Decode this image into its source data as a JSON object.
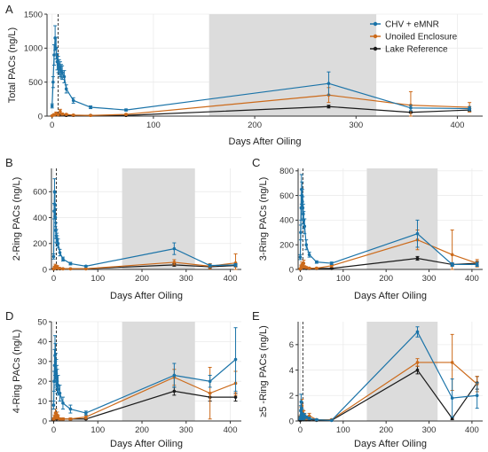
{
  "colors": {
    "chv": "#1a73a8",
    "unoiled": "#cc6a1a",
    "lake": "#1a1a1a",
    "shade": "#dcdcdc",
    "grid": "#ebebeb"
  },
  "legend": {
    "entries": [
      "CHV + eMNR",
      "Unoiled Enclosure",
      "Lake Reference"
    ]
  },
  "chart_data": [
    {
      "panel": "A",
      "type": "line",
      "xlabel": "Days After Oiling",
      "ylabel": "Total PACs (ng/L)",
      "xlim": [
        -5,
        425
      ],
      "ylim": [
        0,
        1500
      ],
      "xticks": [
        0,
        100,
        200,
        300,
        400
      ],
      "yticks": [
        0,
        500,
        1000,
        1500
      ],
      "shade": [
        155,
        320
      ],
      "vline": 6,
      "series": [
        {
          "name": "CHV + eMNR",
          "x": [
            0,
            1,
            2,
            3,
            4,
            5,
            6,
            7,
            8,
            9,
            10,
            12,
            14,
            21,
            38,
            73,
            273,
            354,
            412
          ],
          "y": [
            150,
            500,
            900,
            1150,
            1000,
            800,
            760,
            720,
            690,
            660,
            640,
            580,
            400,
            230,
            130,
            90,
            480,
            120,
            110
          ],
          "err": [
            30,
            80,
            150,
            180,
            160,
            120,
            120,
            110,
            110,
            100,
            100,
            90,
            60,
            40,
            20,
            15,
            170,
            40,
            30
          ]
        },
        {
          "name": "Unoiled Enclosure",
          "x": [
            0,
            2,
            4,
            6,
            8,
            10,
            14,
            21,
            38,
            73,
            273,
            354,
            412
          ],
          "y": [
            5,
            20,
            40,
            20,
            70,
            30,
            25,
            15,
            10,
            25,
            310,
            160,
            130
          ],
          "err": [
            3,
            15,
            20,
            10,
            30,
            15,
            10,
            8,
            5,
            10,
            110,
            200,
            70
          ]
        },
        {
          "name": "Lake Reference",
          "x": [
            0,
            7,
            14,
            21,
            38,
            73,
            273,
            354,
            412
          ],
          "y": [
            5,
            15,
            10,
            10,
            10,
            10,
            140,
            55,
            90
          ],
          "err": [
            2,
            5,
            4,
            4,
            4,
            4,
            20,
            10,
            20
          ]
        }
      ]
    },
    {
      "panel": "B",
      "type": "line",
      "xlabel": "Days After Oiling",
      "ylabel": "2-Ring PACs (ng/L)",
      "xlim": [
        -5,
        425
      ],
      "ylim": [
        0,
        780
      ],
      "xticks": [
        0,
        100,
        200,
        300,
        400
      ],
      "yticks": [
        0,
        200,
        400,
        600
      ],
      "shade": [
        155,
        320
      ],
      "vline": 6,
      "series": [
        {
          "name": "CHV + eMNR",
          "x": [
            0,
            1,
            2,
            3,
            4,
            5,
            6,
            7,
            8,
            10,
            14,
            21,
            38,
            73,
            273,
            354,
            412
          ],
          "y": [
            100,
            450,
            600,
            500,
            400,
            300,
            260,
            240,
            220,
            200,
            130,
            80,
            45,
            25,
            160,
            30,
            35
          ],
          "err": [
            20,
            60,
            100,
            90,
            70,
            60,
            50,
            40,
            40,
            35,
            25,
            15,
            10,
            5,
            45,
            10,
            10
          ]
        },
        {
          "name": "Unoiled Enclosure",
          "x": [
            0,
            2,
            4,
            6,
            8,
            10,
            14,
            21,
            38,
            73,
            273,
            354,
            412
          ],
          "y": [
            5,
            15,
            25,
            10,
            20,
            10,
            8,
            5,
            5,
            5,
            55,
            25,
            50
          ],
          "err": [
            3,
            10,
            15,
            5,
            10,
            5,
            4,
            3,
            3,
            3,
            20,
            20,
            70
          ]
        },
        {
          "name": "Lake Reference",
          "x": [
            0,
            7,
            14,
            21,
            38,
            73,
            273,
            354,
            412
          ],
          "y": [
            3,
            5,
            5,
            5,
            5,
            5,
            35,
            20,
            30
          ],
          "err": [
            1,
            2,
            2,
            2,
            2,
            2,
            10,
            6,
            10
          ]
        }
      ]
    },
    {
      "panel": "C",
      "type": "line",
      "xlabel": "Days After Oiling",
      "ylabel": "3-Ring PACs (ng/L)",
      "xlim": [
        -5,
        425
      ],
      "ylim": [
        0,
        820
      ],
      "xticks": [
        0,
        100,
        200,
        300,
        400
      ],
      "yticks": [
        0,
        200,
        400,
        600,
        800
      ],
      "shade": [
        155,
        320
      ],
      "vline": 6,
      "series": [
        {
          "name": "CHV + eMNR",
          "x": [
            0,
            1,
            2,
            3,
            4,
            5,
            6,
            7,
            8,
            10,
            14,
            21,
            38,
            73,
            273,
            354,
            412
          ],
          "y": [
            100,
            300,
            500,
            650,
            600,
            550,
            500,
            450,
            400,
            350,
            200,
            120,
            60,
            50,
            290,
            40,
            40
          ],
          "err": [
            20,
            60,
            100,
            120,
            110,
            100,
            90,
            80,
            70,
            60,
            40,
            20,
            10,
            10,
            110,
            15,
            15
          ]
        },
        {
          "name": "Unoiled Enclosure",
          "x": [
            0,
            2,
            4,
            6,
            8,
            10,
            14,
            21,
            38,
            73,
            273,
            354,
            412
          ],
          "y": [
            5,
            20,
            40,
            20,
            50,
            20,
            15,
            10,
            10,
            30,
            240,
            120,
            50
          ],
          "err": [
            3,
            15,
            20,
            10,
            25,
            10,
            8,
            5,
            5,
            10,
            80,
            200,
            30
          ]
        },
        {
          "name": "Lake Reference",
          "x": [
            0,
            7,
            14,
            21,
            38,
            73,
            273,
            354,
            412
          ],
          "y": [
            3,
            10,
            8,
            8,
            8,
            8,
            90,
            40,
            50
          ],
          "err": [
            1,
            3,
            3,
            3,
            3,
            3,
            15,
            8,
            15
          ]
        }
      ]
    },
    {
      "panel": "D",
      "type": "line",
      "xlabel": "Days After Oiling",
      "ylabel": "4-Ring PACs (ng/L)",
      "xlim": [
        -5,
        425
      ],
      "ylim": [
        0,
        50
      ],
      "xticks": [
        0,
        100,
        200,
        300,
        400
      ],
      "yticks": [
        0,
        10,
        20,
        30,
        40,
        50
      ],
      "shade": [
        155,
        320
      ],
      "vline": 6,
      "series": [
        {
          "name": "CHV + eMNR",
          "x": [
            0,
            1,
            2,
            3,
            4,
            5,
            6,
            7,
            8,
            10,
            14,
            21,
            38,
            73,
            273,
            354,
            412
          ],
          "y": [
            8,
            20,
            28,
            33,
            30,
            26,
            24,
            22,
            20,
            18,
            14,
            9,
            6,
            4,
            23,
            20,
            31
          ],
          "err": [
            2,
            5,
            8,
            10,
            9,
            8,
            7,
            6,
            6,
            5,
            4,
            3,
            2,
            1,
            6,
            3,
            16
          ]
        },
        {
          "name": "Unoiled Enclosure",
          "x": [
            0,
            2,
            4,
            6,
            8,
            10,
            14,
            21,
            38,
            73,
            273,
            354,
            412
          ],
          "y": [
            1,
            2,
            4,
            2,
            3,
            2,
            1,
            1,
            1,
            2,
            22,
            14,
            19
          ],
          "err": [
            0.5,
            1,
            2,
            1,
            1.5,
            1,
            0.5,
            0.5,
            0.5,
            1,
            4,
            13,
            6
          ]
        },
        {
          "name": "Lake Reference",
          "x": [
            0,
            7,
            14,
            21,
            38,
            73,
            273,
            354,
            412
          ],
          "y": [
            0.5,
            1,
            1,
            1,
            1,
            1,
            15,
            12,
            12
          ],
          "err": [
            0.2,
            0.3,
            0.3,
            0.3,
            0.3,
            0.3,
            2,
            2,
            2
          ]
        }
      ]
    },
    {
      "panel": "E",
      "type": "line",
      "xlabel": "Days After Oiling",
      "ylabel": "≥5 -Ring PACs (ng/L)",
      "xlim": [
        -5,
        425
      ],
      "ylim": [
        0,
        7.8
      ],
      "xticks": [
        0,
        100,
        200,
        300,
        400
      ],
      "yticks": [
        0,
        2,
        4,
        6
      ],
      "shade": [
        155,
        320
      ],
      "vline": 6,
      "series": [
        {
          "name": "CHV + eMNR",
          "x": [
            0,
            1,
            2,
            3,
            4,
            5,
            6,
            7,
            8,
            10,
            14,
            21,
            38,
            73,
            273,
            354,
            412
          ],
          "y": [
            0.2,
            0.8,
            1.5,
            1.0,
            0.6,
            0.4,
            0.3,
            0.2,
            0.3,
            0.4,
            0.3,
            0.2,
            0.1,
            0.05,
            7.0,
            1.8,
            2.0
          ],
          "err": [
            0.1,
            0.4,
            0.6,
            0.5,
            0.3,
            0.2,
            0.2,
            0.1,
            0.2,
            0.2,
            0.1,
            0.1,
            0.05,
            0.03,
            0.4,
            1.5,
            1.0
          ]
        },
        {
          "name": "Unoiled Enclosure",
          "x": [
            0,
            2,
            4,
            6,
            8,
            10,
            14,
            21,
            38,
            73,
            273,
            354,
            412
          ],
          "y": [
            0.3,
            0.8,
            1.2,
            0.6,
            0.5,
            0.3,
            0.2,
            0.4,
            0.1,
            0.1,
            4.6,
            4.6,
            2.9
          ],
          "err": [
            0.1,
            0.3,
            0.5,
            0.3,
            0.3,
            0.2,
            0.1,
            0.2,
            0.05,
            0.05,
            0.3,
            2.2,
            0.6
          ]
        },
        {
          "name": "Lake Reference",
          "x": [
            0,
            7,
            14,
            21,
            38,
            73,
            273,
            354,
            412
          ],
          "y": [
            0.05,
            0.1,
            0.1,
            0.1,
            0.05,
            0.05,
            4.0,
            0.2,
            3.0
          ],
          "err": [
            0.02,
            0.05,
            0.05,
            0.05,
            0.02,
            0.02,
            0.3,
            0.1,
            0.5
          ]
        }
      ]
    }
  ]
}
